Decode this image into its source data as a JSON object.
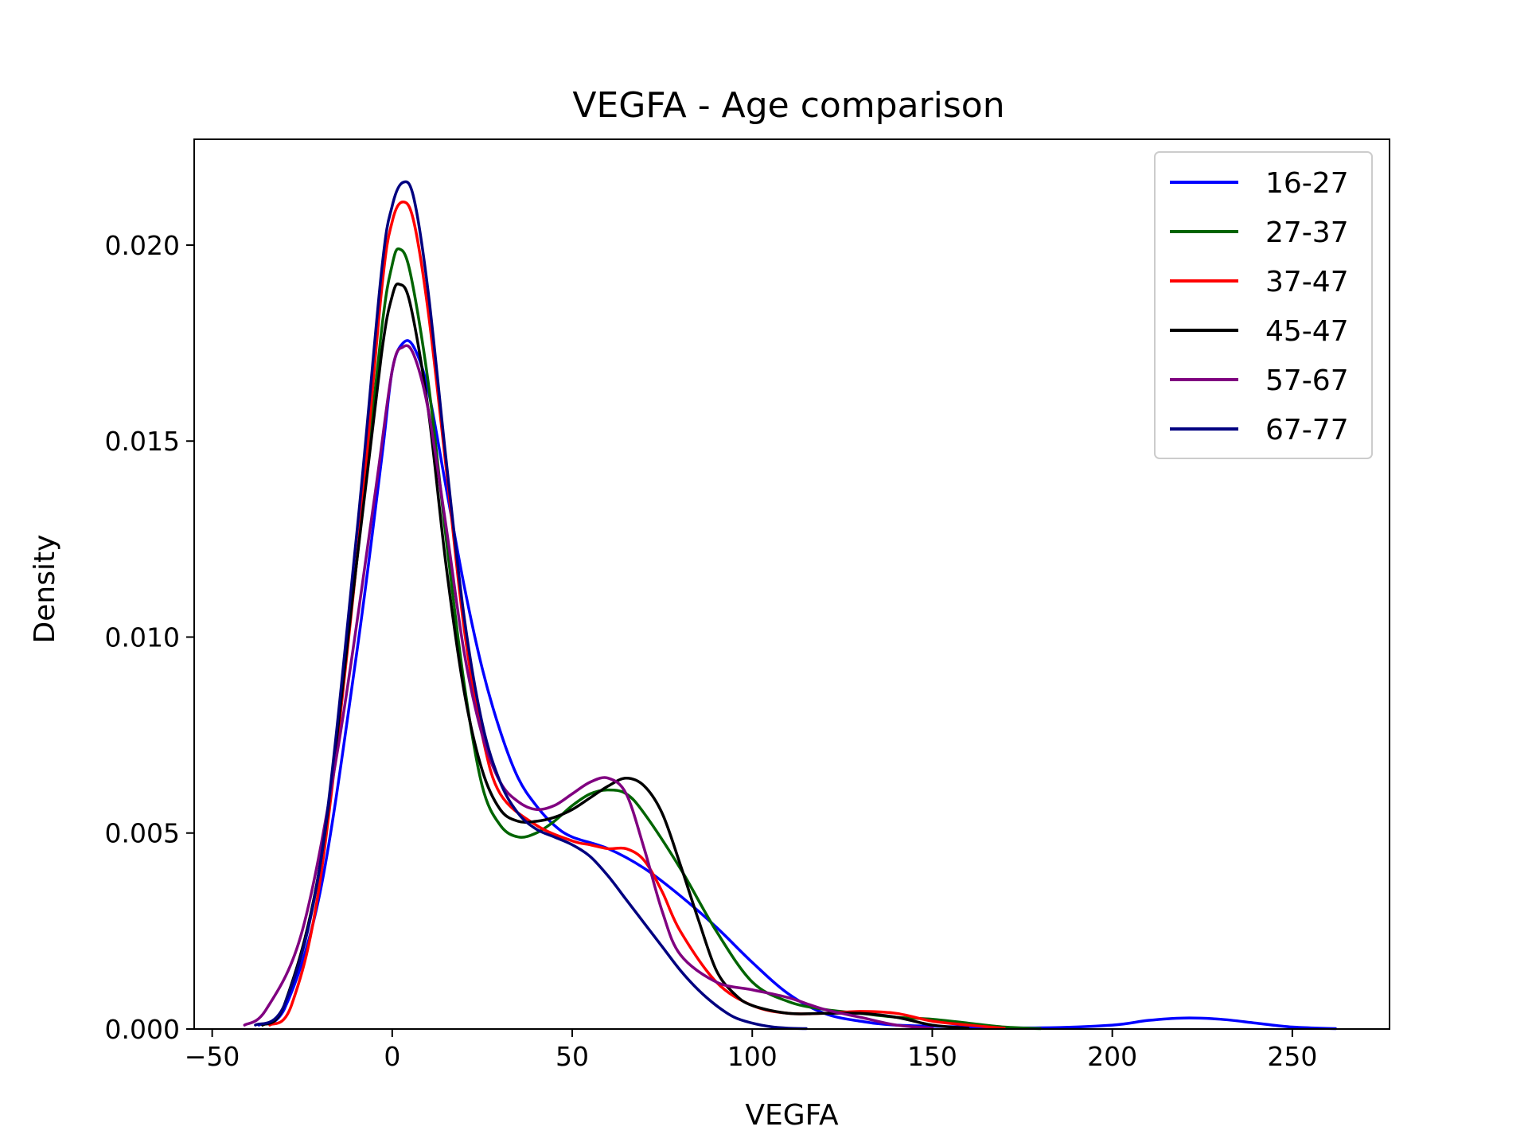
{
  "chart_data": {
    "type": "line",
    "title": "VEGFA - Age comparison",
    "xlabel": "VEGFA",
    "ylabel": "Density",
    "xlim": [
      -55,
      277
    ],
    "ylim": [
      0,
      0.0227
    ],
    "x_ticks": [
      {
        "value": -50,
        "label": "−50"
      },
      {
        "value": 0,
        "label": "0"
      },
      {
        "value": 50,
        "label": "50"
      },
      {
        "value": 100,
        "label": "100"
      },
      {
        "value": 150,
        "label": "150"
      },
      {
        "value": 200,
        "label": "200"
      },
      {
        "value": 250,
        "label": "250"
      }
    ],
    "y_ticks": [
      {
        "value": 0,
        "label": "0.000"
      },
      {
        "value": 0.005,
        "label": "0.005"
      },
      {
        "value": 0.01,
        "label": "0.010"
      },
      {
        "value": 0.015,
        "label": "0.015"
      },
      {
        "value": 0.02,
        "label": "0.020"
      }
    ],
    "grid": false,
    "legend_position": "top-right",
    "series": [
      {
        "name": "16-27",
        "color": "#0000ff",
        "points": [
          [
            -37,
            0.0001
          ],
          [
            -30,
            0.0005
          ],
          [
            -20,
            0.0035
          ],
          [
            -10,
            0.0095
          ],
          [
            -3,
            0.0145
          ],
          [
            0,
            0.0168
          ],
          [
            3,
            0.0175
          ],
          [
            6,
            0.0174
          ],
          [
            10,
            0.0163
          ],
          [
            15,
            0.0138
          ],
          [
            20,
            0.0113
          ],
          [
            25,
            0.0092
          ],
          [
            30,
            0.0076
          ],
          [
            35,
            0.0064
          ],
          [
            40,
            0.0057
          ],
          [
            45,
            0.0052
          ],
          [
            50,
            0.0049
          ],
          [
            60,
            0.0046
          ],
          [
            70,
            0.0041
          ],
          [
            80,
            0.0034
          ],
          [
            90,
            0.0026
          ],
          [
            100,
            0.0017
          ],
          [
            110,
            0.0009
          ],
          [
            120,
            0.0004
          ],
          [
            130,
            0.0002
          ],
          [
            140,
            0.0001
          ],
          [
            160,
            5e-05
          ],
          [
            180,
            3e-05
          ],
          [
            200,
            0.0001
          ],
          [
            210,
            0.00022
          ],
          [
            220,
            0.00028
          ],
          [
            230,
            0.00025
          ],
          [
            240,
            0.00015
          ],
          [
            250,
            5e-05
          ],
          [
            262,
            1e-05
          ]
        ]
      },
      {
        "name": "27-37",
        "color": "#006400",
        "points": [
          [
            -36,
            0.0001
          ],
          [
            -30,
            0.0006
          ],
          [
            -20,
            0.0042
          ],
          [
            -10,
            0.0118
          ],
          [
            -3,
            0.0178
          ],
          [
            0,
            0.0195
          ],
          [
            2,
            0.0199
          ],
          [
            5,
            0.0193
          ],
          [
            10,
            0.0165
          ],
          [
            15,
            0.0125
          ],
          [
            20,
            0.0088
          ],
          [
            25,
            0.0062
          ],
          [
            30,
            0.0052
          ],
          [
            35,
            0.0049
          ],
          [
            40,
            0.005
          ],
          [
            45,
            0.0053
          ],
          [
            50,
            0.0057
          ],
          [
            55,
            0.006
          ],
          [
            60,
            0.0061
          ],
          [
            65,
            0.006
          ],
          [
            70,
            0.0055
          ],
          [
            80,
            0.0041
          ],
          [
            90,
            0.0025
          ],
          [
            100,
            0.0012
          ],
          [
            110,
            0.0007
          ],
          [
            120,
            0.0005
          ],
          [
            130,
            0.0004
          ],
          [
            140,
            0.0003
          ],
          [
            150,
            0.00025
          ],
          [
            160,
            0.00015
          ],
          [
            170,
            5e-05
          ],
          [
            180,
            1e-05
          ]
        ]
      },
      {
        "name": "37-47",
        "color": "#ff0000",
        "points": [
          [
            -34,
            0.0001
          ],
          [
            -28,
            0.0006
          ],
          [
            -20,
            0.0038
          ],
          [
            -10,
            0.0118
          ],
          [
            -3,
            0.0188
          ],
          [
            0,
            0.0206
          ],
          [
            3,
            0.0211
          ],
          [
            6,
            0.0206
          ],
          [
            10,
            0.0183
          ],
          [
            15,
            0.0143
          ],
          [
            20,
            0.0102
          ],
          [
            25,
            0.0075
          ],
          [
            30,
            0.006
          ],
          [
            40,
            0.0052
          ],
          [
            50,
            0.0048
          ],
          [
            55,
            0.0047
          ],
          [
            60,
            0.0046
          ],
          [
            65,
            0.0046
          ],
          [
            70,
            0.0043
          ],
          [
            75,
            0.0035
          ],
          [
            80,
            0.0025
          ],
          [
            90,
            0.0012
          ],
          [
            100,
            0.0006
          ],
          [
            110,
            0.0004
          ],
          [
            120,
            0.0004
          ],
          [
            130,
            0.00045
          ],
          [
            140,
            0.0004
          ],
          [
            150,
            0.0002
          ],
          [
            160,
            0.0001
          ],
          [
            170,
            2e-05
          ]
        ]
      },
      {
        "name": "45-47",
        "color": "#000000",
        "points": [
          [
            -36,
            0.0001
          ],
          [
            -30,
            0.0006
          ],
          [
            -20,
            0.0042
          ],
          [
            -10,
            0.0118
          ],
          [
            -3,
            0.0172
          ],
          [
            0,
            0.0187
          ],
          [
            2,
            0.019
          ],
          [
            5,
            0.0185
          ],
          [
            10,
            0.0158
          ],
          [
            15,
            0.0118
          ],
          [
            20,
            0.0086
          ],
          [
            25,
            0.0066
          ],
          [
            30,
            0.0056
          ],
          [
            35,
            0.0053
          ],
          [
            40,
            0.0053
          ],
          [
            45,
            0.0054
          ],
          [
            50,
            0.0056
          ],
          [
            55,
            0.0059
          ],
          [
            60,
            0.0062
          ],
          [
            65,
            0.0064
          ],
          [
            70,
            0.0062
          ],
          [
            75,
            0.0055
          ],
          [
            80,
            0.0042
          ],
          [
            85,
            0.0028
          ],
          [
            90,
            0.0015
          ],
          [
            95,
            0.0009
          ],
          [
            100,
            0.0006
          ],
          [
            110,
            0.0004
          ],
          [
            120,
            0.0004
          ],
          [
            130,
            0.0004
          ],
          [
            140,
            0.0003
          ],
          [
            150,
            0.0001
          ],
          [
            160,
            2e-05
          ]
        ]
      },
      {
        "name": "57-67",
        "color": "#800080",
        "points": [
          [
            -41,
            0.0001
          ],
          [
            -35,
            0.0005
          ],
          [
            -25,
            0.0025
          ],
          [
            -15,
            0.0072
          ],
          [
            -5,
            0.0135
          ],
          [
            0,
            0.0168
          ],
          [
            3,
            0.0174
          ],
          [
            6,
            0.0172
          ],
          [
            10,
            0.0158
          ],
          [
            15,
            0.0128
          ],
          [
            20,
            0.0096
          ],
          [
            25,
            0.0075
          ],
          [
            30,
            0.0063
          ],
          [
            35,
            0.0058
          ],
          [
            40,
            0.0056
          ],
          [
            45,
            0.0057
          ],
          [
            50,
            0.006
          ],
          [
            55,
            0.0063
          ],
          [
            60,
            0.0064
          ],
          [
            65,
            0.006
          ],
          [
            70,
            0.0046
          ],
          [
            75,
            0.003
          ],
          [
            80,
            0.0019
          ],
          [
            90,
            0.0012
          ],
          [
            100,
            0.001
          ],
          [
            110,
            0.0008
          ],
          [
            120,
            0.0005
          ],
          [
            130,
            0.0003
          ],
          [
            140,
            0.0001
          ],
          [
            150,
            2e-05
          ]
        ]
      },
      {
        "name": "67-77",
        "color": "#000080",
        "points": [
          [
            -38,
            0.0001
          ],
          [
            -30,
            0.0006
          ],
          [
            -20,
            0.0042
          ],
          [
            -10,
            0.0125
          ],
          [
            -3,
            0.0193
          ],
          [
            0,
            0.021
          ],
          [
            3,
            0.0216
          ],
          [
            6,
            0.0212
          ],
          [
            10,
            0.0188
          ],
          [
            15,
            0.0145
          ],
          [
            20,
            0.0105
          ],
          [
            25,
            0.0078
          ],
          [
            30,
            0.0063
          ],
          [
            35,
            0.0055
          ],
          [
            40,
            0.0051
          ],
          [
            45,
            0.0049
          ],
          [
            50,
            0.0047
          ],
          [
            55,
            0.0044
          ],
          [
            60,
            0.0039
          ],
          [
            65,
            0.0033
          ],
          [
            70,
            0.0027
          ],
          [
            75,
            0.0021
          ],
          [
            80,
            0.0015
          ],
          [
            85,
            0.001
          ],
          [
            90,
            0.0006
          ],
          [
            95,
            0.0003
          ],
          [
            100,
            0.00015
          ],
          [
            105,
            6e-05
          ],
          [
            110,
            2e-05
          ],
          [
            115,
            1e-05
          ]
        ]
      }
    ]
  }
}
